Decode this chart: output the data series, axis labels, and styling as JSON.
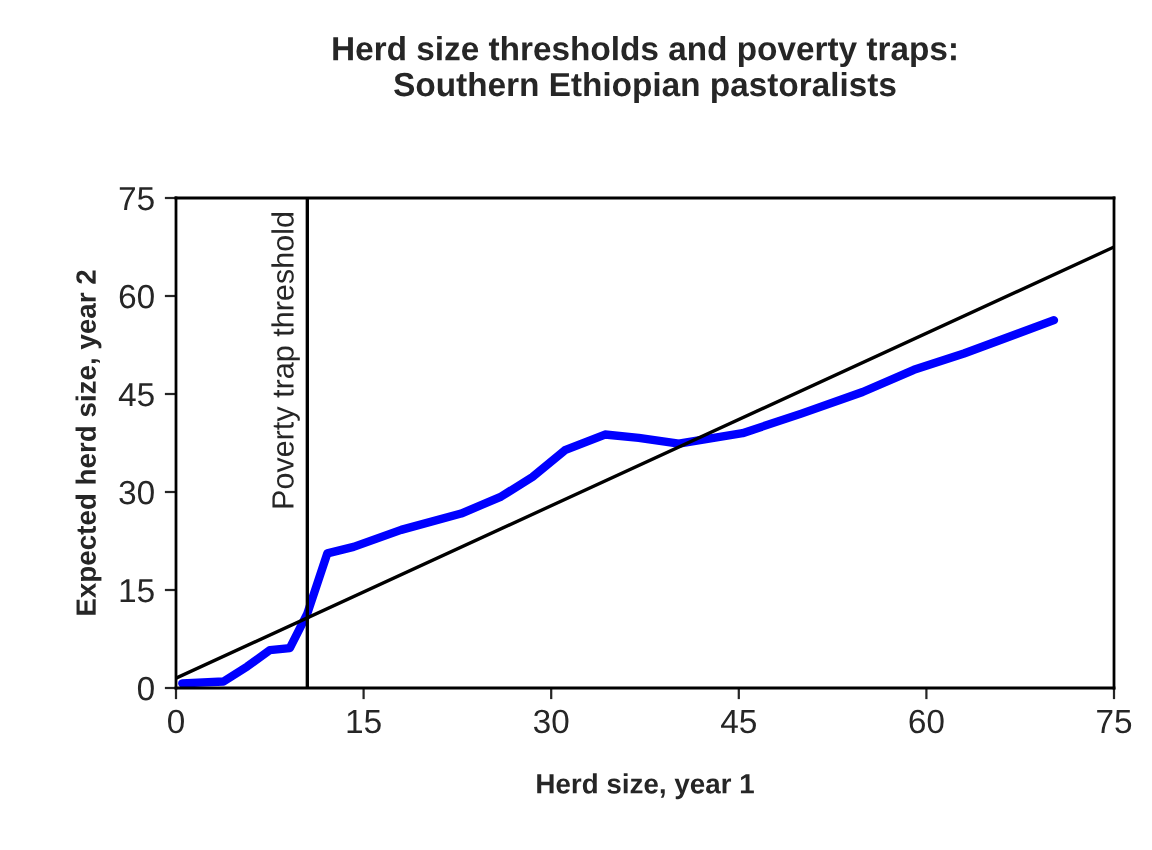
{
  "chart_data": {
    "type": "line",
    "title": "Herd size thresholds and poverty traps:\nSouthern Ethiopian pastoralists",
    "xlabel": "Herd size, year 1",
    "ylabel": "Expected herd size, year 2",
    "series": [
      {
        "color": "#0000ff",
        "x": [
          0.5,
          3.8,
          5.7,
          7.5,
          9.1,
          10.5,
          12.1,
          14.2,
          18.0,
          22.8,
          26.0,
          28.5,
          31.1,
          34.3,
          37.0,
          40.2,
          45.3,
          50.0,
          54.9,
          59.0,
          63.0,
          70.2
        ],
        "values": [
          0.7,
          1.0,
          3.3,
          5.8,
          6.1,
          11.4,
          20.6,
          21.6,
          24.2,
          26.7,
          29.3,
          32.3,
          36.4,
          38.8,
          38.3,
          37.4,
          39.0,
          42.0,
          45.3,
          48.7,
          51.2,
          56.3
        ]
      },
      {
        "type": "line",
        "color": "#000000",
        "x": [
          0,
          75
        ],
        "values": [
          1.5,
          67.5
        ]
      }
    ],
    "ref_lines": [
      {
        "axis": "x",
        "value": 10.5,
        "label": "Poverty trap threshold",
        "color": "#000000"
      }
    ],
    "xlim": [
      0,
      75
    ],
    "ylim": [
      0,
      75
    ],
    "xticks": [
      0,
      15,
      30,
      45,
      60,
      75
    ],
    "yticks": [
      0,
      15,
      30,
      45,
      60,
      75
    ],
    "grid": false,
    "legend": false
  }
}
